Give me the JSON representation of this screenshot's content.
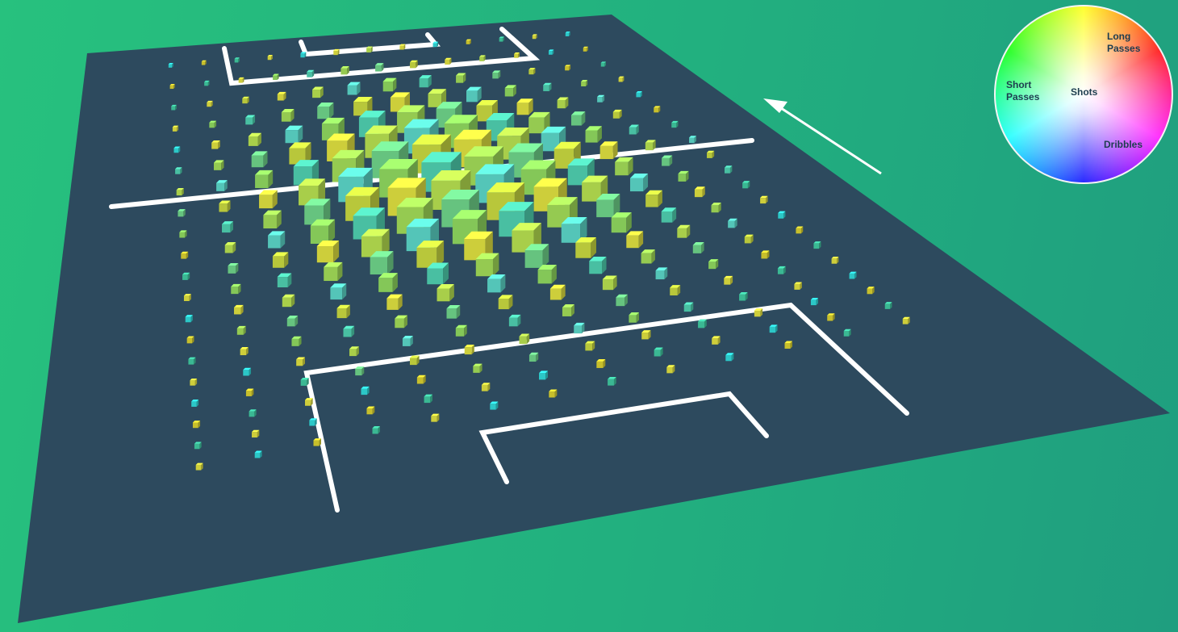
{
  "colors": {
    "background_left": "#27c17e",
    "background_right": "#1f9e7f",
    "pitch": "#2d4a5e",
    "lines": "#ffffff"
  },
  "legend": {
    "long_passes": "Long\nPasses",
    "short_passes": "Short\nPasses",
    "shots": "Shots",
    "dribbles": "Dribbles"
  },
  "chart_data": {
    "type": "heatmap",
    "grid": "3D cube grid over a football pitch; cube size = action volume, cube colour = action-type mix (hue wheel)",
    "attack_direction": "up-left",
    "rows": 20,
    "cols": 13,
    "values": [
      [
        0.02,
        0.02,
        0.03,
        0.03,
        0.05,
        0.06,
        0.07,
        0.05,
        0.04,
        0.03,
        0.03,
        0.02,
        0.02
      ],
      [
        0.02,
        0.03,
        0.04,
        0.06,
        0.1,
        0.14,
        0.14,
        0.12,
        0.08,
        0.06,
        0.04,
        0.03,
        0.02
      ],
      [
        0.03,
        0.05,
        0.08,
        0.14,
        0.22,
        0.28,
        0.3,
        0.26,
        0.18,
        0.12,
        0.07,
        0.04,
        0.02
      ],
      [
        0.04,
        0.08,
        0.16,
        0.26,
        0.38,
        0.46,
        0.48,
        0.44,
        0.34,
        0.22,
        0.12,
        0.06,
        0.03
      ],
      [
        0.05,
        0.12,
        0.26,
        0.4,
        0.56,
        0.68,
        0.72,
        0.66,
        0.52,
        0.36,
        0.2,
        0.08,
        0.04
      ],
      [
        0.06,
        0.16,
        0.34,
        0.52,
        0.7,
        0.84,
        0.9,
        0.86,
        0.7,
        0.5,
        0.28,
        0.12,
        0.05
      ],
      [
        0.07,
        0.18,
        0.38,
        0.6,
        0.8,
        0.94,
        1.0,
        0.96,
        0.8,
        0.58,
        0.34,
        0.14,
        0.05
      ],
      [
        0.07,
        0.18,
        0.38,
        0.62,
        0.84,
        0.96,
        1.0,
        0.98,
        0.84,
        0.62,
        0.36,
        0.15,
        0.06
      ],
      [
        0.06,
        0.17,
        0.36,
        0.58,
        0.8,
        0.92,
        0.96,
        0.94,
        0.82,
        0.6,
        0.36,
        0.15,
        0.06
      ],
      [
        0.05,
        0.15,
        0.32,
        0.52,
        0.72,
        0.84,
        0.88,
        0.88,
        0.76,
        0.56,
        0.34,
        0.14,
        0.06
      ],
      [
        0.05,
        0.13,
        0.27,
        0.44,
        0.6,
        0.72,
        0.76,
        0.78,
        0.66,
        0.48,
        0.3,
        0.13,
        0.05
      ],
      [
        0.04,
        0.11,
        0.22,
        0.34,
        0.46,
        0.56,
        0.6,
        0.62,
        0.52,
        0.38,
        0.24,
        0.11,
        0.05
      ],
      [
        0.04,
        0.09,
        0.17,
        0.26,
        0.34,
        0.4,
        0.44,
        0.46,
        0.38,
        0.28,
        0.18,
        0.09,
        0.04
      ],
      [
        0.03,
        0.07,
        0.12,
        0.18,
        0.24,
        0.28,
        0.3,
        0.32,
        0.28,
        0.2,
        0.13,
        0.07,
        0.03
      ],
      [
        0.03,
        0.05,
        0.09,
        0.12,
        0.16,
        0.18,
        0.2,
        0.22,
        0.2,
        0.14,
        0.09,
        0.05,
        0.03
      ],
      [
        0.02,
        0.04,
        0.06,
        0.08,
        0.1,
        0.12,
        0.13,
        0.14,
        0.13,
        0.1,
        0.06,
        0.04,
        0.02
      ],
      [
        0.02,
        0.03,
        0.04,
        0.06,
        0.07,
        0.08,
        0.09,
        0.1,
        0.09,
        0.07,
        0.05,
        0.03,
        0.02
      ],
      [
        0.02,
        0.02,
        0.03,
        0.04,
        0.05,
        0.06,
        0.06,
        0.07,
        0.06,
        0.05,
        0.04,
        0.02,
        0.02
      ],
      [
        0.01,
        0.02,
        0.02,
        0.03,
        0.04,
        0.04,
        0.05,
        0.05,
        0.05,
        0.04,
        0.03,
        0.02,
        0.01
      ],
      [
        0.01,
        0.01,
        0.02,
        0.02,
        0.03,
        0.03,
        0.03,
        0.04,
        0.03,
        0.03,
        0.02,
        0.01,
        0.01
      ]
    ],
    "legend_categories": [
      "Long Passes",
      "Short Passes",
      "Shots",
      "Dribbles"
    ]
  }
}
